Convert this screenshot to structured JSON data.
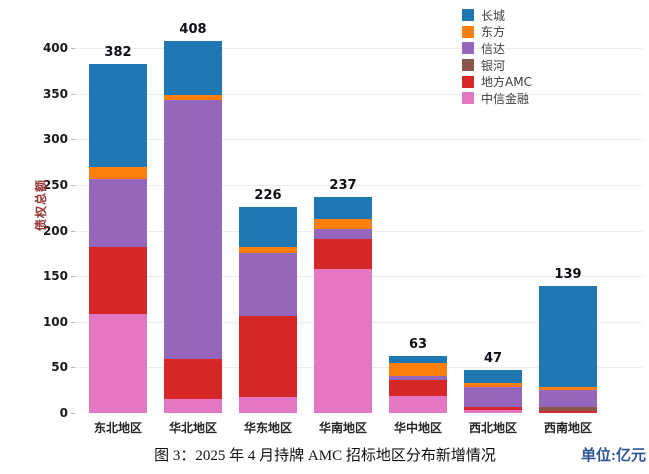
{
  "chart_data": {
    "type": "bar",
    "stacked": true,
    "title": "图 3：2025 年 4 月持牌 AMC 招标地区分布新增情况",
    "unit_label": "单位:亿元",
    "unit_label_color": "#2f5597",
    "ylabel": "债权总额",
    "ylabel_color": "#953734",
    "categories": [
      "东北地区",
      "华北地区",
      "华东地区",
      "华南地区",
      "华中地区",
      "西北地区",
      "西南地区"
    ],
    "series": [
      {
        "name": "中信金融",
        "color": "#e377c2",
        "values": [
          108,
          15,
          18,
          158,
          19,
          3,
          0
        ]
      },
      {
        "name": "地方AMC",
        "color": "#d62728",
        "values": [
          74,
          44,
          88,
          33,
          17,
          4,
          2
        ]
      },
      {
        "name": "银河",
        "color": "#8c564b",
        "values": [
          0,
          0,
          0,
          0,
          0,
          0,
          5
        ]
      },
      {
        "name": "信达",
        "color": "#9467bd",
        "values": [
          74,
          284,
          69,
          11,
          5,
          21,
          18
        ]
      },
      {
        "name": "东方",
        "color": "#ff7f0e",
        "values": [
          14,
          5,
          7,
          11,
          14,
          5,
          4
        ]
      },
      {
        "name": "长城",
        "color": "#1f77b4",
        "values": [
          112,
          60,
          44,
          24,
          8,
          14,
          110
        ]
      }
    ],
    "totals": [
      382,
      408,
      226,
      237,
      63,
      47,
      139
    ],
    "yticks": [
      0,
      50,
      100,
      150,
      200,
      250,
      300,
      350,
      400
    ],
    "ylim": [
      0,
      430
    ],
    "grid": true,
    "legend": {
      "position": "top-right",
      "labels": [
        "长城",
        "东方",
        "信达",
        "银河",
        "地方AMC",
        "中信金融"
      ]
    }
  }
}
